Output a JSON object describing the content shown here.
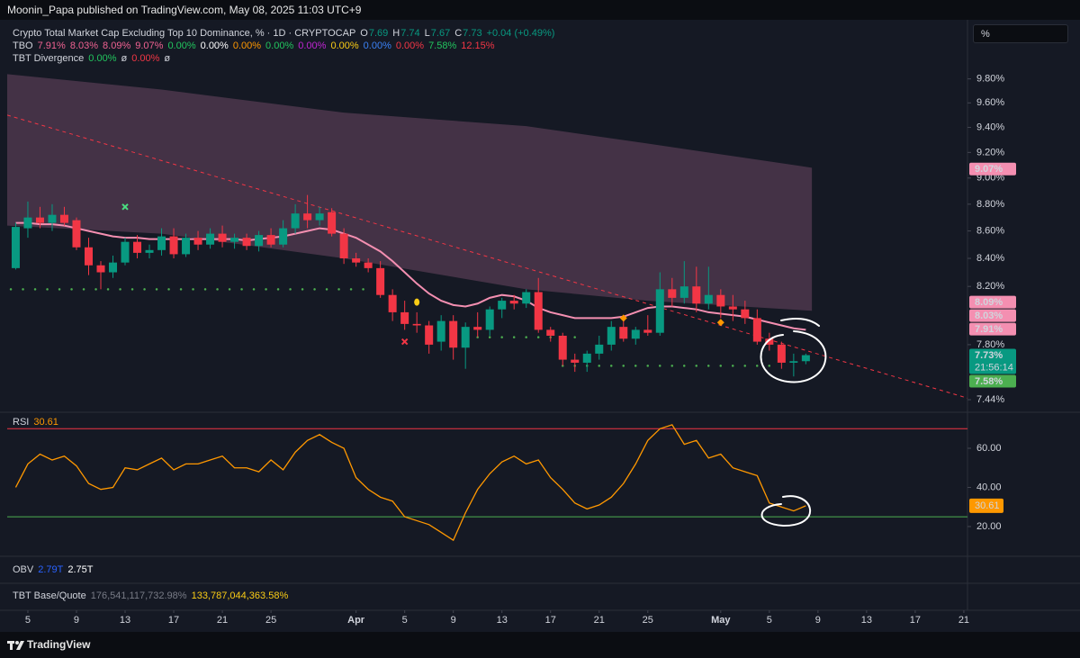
{
  "header": {
    "publisher": "Moonin_Papa published on TradingView.com, May 08, 2025 11:03 UTC+9",
    "scale_button": "%",
    "footer": "TradingView"
  },
  "legend": {
    "symbol": "Crypto Total Market Cap Excluding Top 10 Dominance, % · 1D · CRYPTOCAP",
    "color": "#089981",
    "ohlc": [
      {
        "key": "O",
        "value": "7.69"
      },
      {
        "key": "H",
        "value": "7.74"
      },
      {
        "key": "L",
        "value": "7.67"
      },
      {
        "key": "C",
        "value": "7.73"
      }
    ],
    "change": "+0.04 (+0.49%)"
  },
  "indicators": [
    {
      "name": "TBO",
      "values": [
        {
          "text": "7.91%",
          "color": "#f06292"
        },
        {
          "text": "8.03%",
          "color": "#f06292"
        },
        {
          "text": "8.09%",
          "color": "#f06292"
        },
        {
          "text": "9.07%",
          "color": "#f06292"
        },
        {
          "text": "0.00%",
          "color": "#22c55e"
        },
        {
          "text": "0.00%",
          "color": "#ffffff"
        },
        {
          "text": "0.00%",
          "color": "#ff9800"
        },
        {
          "text": "0.00%",
          "color": "#22c55e"
        },
        {
          "text": "0.00%",
          "color": "#c026d3"
        },
        {
          "text": "0.00%",
          "color": "#facc15"
        },
        {
          "text": "0.00%",
          "color": "#3b82f6"
        },
        {
          "text": "0.00%",
          "color": "#f23645"
        },
        {
          "text": "7.58%",
          "color": "#22c55e"
        },
        {
          "text": "12.15%",
          "color": "#f23645"
        }
      ]
    },
    {
      "name": "TBT Divergence",
      "values": [
        {
          "text": "0.00%",
          "color": "#22c55e"
        },
        {
          "text": "ø",
          "color": "#d1d4dc"
        },
        {
          "text": "0.00%",
          "color": "#f23645"
        },
        {
          "text": "ø",
          "color": "#d1d4dc"
        }
      ]
    }
  ],
  "lower_panes": [
    {
      "name": "OBV",
      "values": [
        {
          "text": "2.79T",
          "color": "#2962ff"
        },
        {
          "text": "2.75T",
          "color": "#ffffff"
        }
      ]
    },
    {
      "name": "TBT Base/Quote",
      "values": [
        {
          "text": "176,541,117,732.98%",
          "color": "#787b86"
        },
        {
          "text": "133,787,044,363.58%",
          "color": "#facc15"
        }
      ]
    }
  ],
  "chart_data": [
    {
      "type": "candlestick",
      "log_scale": true,
      "up_color": "#089981",
      "down_color": "#f23645",
      "x": [
        63,
        64,
        65,
        66,
        67,
        68,
        69,
        70,
        71,
        72,
        73,
        74,
        75,
        76,
        77,
        78,
        79,
        80,
        81,
        82,
        83,
        84,
        85,
        86,
        87,
        88,
        89,
        90,
        91,
        92,
        93,
        94,
        95,
        96,
        97,
        98,
        99,
        100,
        101,
        102,
        103,
        104,
        105,
        106,
        107,
        108,
        109,
        110,
        111,
        112,
        113,
        114,
        115,
        116,
        117,
        118,
        119,
        120,
        121,
        122,
        123,
        124,
        125,
        126,
        127,
        128
      ],
      "open": [
        8.33,
        8.62,
        8.7,
        8.66,
        8.72,
        8.68,
        8.48,
        8.35,
        8.3,
        8.37,
        8.52,
        8.44,
        8.46,
        8.56,
        8.43,
        8.55,
        8.5,
        8.58,
        8.52,
        8.55,
        8.49,
        8.57,
        8.5,
        8.62,
        8.73,
        8.68,
        8.74,
        8.58,
        8.4,
        8.37,
        8.33,
        8.14,
        8.02,
        7.94,
        7.93,
        7.82,
        7.96,
        7.78,
        7.92,
        7.9,
        8.04,
        8.1,
        8.08,
        8.16,
        7.9,
        7.86,
        7.7,
        7.68,
        7.74,
        7.8,
        7.92,
        7.84,
        7.9,
        7.88,
        8.18,
        8.12,
        8.2,
        8.08,
        8.14,
        8.06,
        8.04,
        7.98,
        7.84,
        7.8,
        7.68,
        7.69
      ],
      "high": [
        8.66,
        8.82,
        8.78,
        8.8,
        8.78,
        8.7,
        8.55,
        8.38,
        8.42,
        8.55,
        8.57,
        8.5,
        8.62,
        8.62,
        8.58,
        8.6,
        8.62,
        8.64,
        8.58,
        8.58,
        8.6,
        8.62,
        8.68,
        8.8,
        8.87,
        8.78,
        8.77,
        8.62,
        8.44,
        8.4,
        8.38,
        8.18,
        8.1,
        8.02,
        7.96,
        8.0,
        8.0,
        7.95,
        8.02,
        8.06,
        8.12,
        8.14,
        8.18,
        8.26,
        7.92,
        7.88,
        7.74,
        7.76,
        7.86,
        7.96,
        7.98,
        7.92,
        8.0,
        8.3,
        8.26,
        8.38,
        8.34,
        8.34,
        8.18,
        8.14,
        8.1,
        8.04,
        7.88,
        7.82,
        7.74,
        7.74
      ],
      "low": [
        8.32,
        8.55,
        8.62,
        8.6,
        8.64,
        8.46,
        8.28,
        8.18,
        8.26,
        8.35,
        8.4,
        8.4,
        8.42,
        8.4,
        8.41,
        8.46,
        8.47,
        8.48,
        8.47,
        8.46,
        8.45,
        8.48,
        8.48,
        8.58,
        8.62,
        8.64,
        8.56,
        8.36,
        8.34,
        8.3,
        8.12,
        7.96,
        7.9,
        7.88,
        7.74,
        7.76,
        7.7,
        7.64,
        7.85,
        7.86,
        7.98,
        8.04,
        8.05,
        7.88,
        7.82,
        7.66,
        7.62,
        7.62,
        7.7,
        7.76,
        7.82,
        7.8,
        7.86,
        7.86,
        8.06,
        8.08,
        8.02,
        8.04,
        7.98,
        7.96,
        7.94,
        7.8,
        7.76,
        7.64,
        7.59,
        7.67
      ],
      "close": [
        8.63,
        8.7,
        8.66,
        8.72,
        8.66,
        8.48,
        8.35,
        8.3,
        8.37,
        8.52,
        8.44,
        8.46,
        8.56,
        8.43,
        8.55,
        8.5,
        8.58,
        8.52,
        8.55,
        8.49,
        8.57,
        8.5,
        8.62,
        8.73,
        8.68,
        8.73,
        8.58,
        8.4,
        8.37,
        8.33,
        8.14,
        8.02,
        7.94,
        7.93,
        7.8,
        7.96,
        7.78,
        7.92,
        7.9,
        8.04,
        8.1,
        8.08,
        8.16,
        7.9,
        7.86,
        7.7,
        7.68,
        7.74,
        7.8,
        7.92,
        7.84,
        7.9,
        7.88,
        8.18,
        8.12,
        8.2,
        8.08,
        8.14,
        8.06,
        8.04,
        7.98,
        7.82,
        7.8,
        7.68,
        7.69,
        7.73
      ],
      "ma": {
        "color": "#f48fb1",
        "values": [
          8.66,
          8.66,
          8.65,
          8.65,
          8.64,
          8.62,
          8.6,
          8.58,
          8.56,
          8.55,
          8.55,
          8.54,
          8.54,
          8.54,
          8.54,
          8.54,
          8.54,
          8.54,
          8.54,
          8.53,
          8.54,
          8.55,
          8.56,
          8.58,
          8.6,
          8.62,
          8.61,
          8.58,
          8.55,
          8.5,
          8.45,
          8.38,
          8.3,
          8.22,
          8.15,
          8.1,
          8.07,
          8.06,
          8.08,
          8.12,
          8.14,
          8.13,
          8.1,
          8.05,
          8.02,
          8.0,
          7.98,
          7.98,
          7.98,
          7.98,
          7.99,
          8.02,
          8.05,
          8.06,
          8.06,
          8.05,
          8.04,
          8.02,
          8.01,
          8.0,
          7.99,
          7.97,
          7.95,
          7.93,
          7.91,
          7.9
        ]
      },
      "band": {
        "color": "#6b4763",
        "x": [
          62.3,
          75,
          90,
          105,
          115,
          128.5
        ],
        "upper": [
          9.84,
          9.71,
          9.52,
          9.41,
          9.27,
          9.08
        ],
        "lower": [
          8.64,
          8.58,
          8.4,
          8.18,
          8.1,
          8.03
        ]
      },
      "trendline": {
        "color": "#f23645",
        "x": [
          62.3,
          141.3
        ],
        "values": [
          9.5,
          7.45
        ]
      },
      "levels": {
        "color": "#4caf50",
        "items": [
          {
            "x": [
              62.6,
              92
            ],
            "value": 8.18
          },
          {
            "x": [
              99,
              109
            ],
            "value": 7.85
          },
          {
            "x": [
              108,
              125.5
            ],
            "value": 7.66
          }
        ]
      },
      "signals": [
        {
          "x": 72,
          "value": 8.78,
          "shape": "x",
          "color": "#4ade80"
        },
        {
          "x": 95,
          "value": 7.82,
          "shape": "x",
          "color": "#f23645"
        },
        {
          "x": 96,
          "value": 8.09,
          "shape": "dot",
          "color": "#facc15"
        },
        {
          "x": 113,
          "value": 7.98,
          "shape": "diamond",
          "color": "#ff9800"
        },
        {
          "x": 121,
          "value": 7.95,
          "shape": "diamond",
          "color": "#ff9800"
        }
      ],
      "price_labels": [
        {
          "value": 9.07,
          "label": "9.07%",
          "color": "#f48fb1"
        },
        {
          "value": 8.09,
          "label": "8.09%",
          "color": "#f48fb1"
        },
        {
          "value": 8.03,
          "label": "8.03%",
          "color": "#f48fb1"
        },
        {
          "value": 7.91,
          "label": "7.91%",
          "color": "#f48fb1"
        },
        {
          "value": 7.73,
          "label": "7.73%",
          "color": "#089981",
          "countdown": "21:56:14"
        },
        {
          "value": 7.58,
          "label": "7.58%",
          "color": "#4caf50"
        }
      ],
      "xlim": [
        62.3,
        141.3
      ],
      "ylim": [
        7.36,
        10.31
      ],
      "yticks": [
        {
          "value": 7.44,
          "label": "7.44%"
        },
        {
          "value": 7.8,
          "label": "7.80%"
        },
        {
          "value": 8.2,
          "label": "8.20%"
        },
        {
          "value": 8.4,
          "label": "8.40%"
        },
        {
          "value": 8.6,
          "label": "8.60%"
        },
        {
          "value": 8.8,
          "label": "8.80%"
        },
        {
          "value": 9.0,
          "label": "9.00%"
        },
        {
          "value": 9.2,
          "label": "9.20%"
        },
        {
          "value": 9.4,
          "label": "9.40%"
        },
        {
          "value": 9.6,
          "label": "9.60%"
        },
        {
          "value": 9.8,
          "label": "9.80%"
        }
      ],
      "xticks": [
        {
          "value": 64,
          "label": "5"
        },
        {
          "value": 68,
          "label": "9"
        },
        {
          "value": 72,
          "label": "13"
        },
        {
          "value": 76,
          "label": "17"
        },
        {
          "value": 80,
          "label": "21"
        },
        {
          "value": 84,
          "label": "25"
        },
        {
          "value": 91,
          "label": "Apr"
        },
        {
          "value": 95,
          "label": "5"
        },
        {
          "value": 99,
          "label": "9"
        },
        {
          "value": 103,
          "label": "13"
        },
        {
          "value": 107,
          "label": "17"
        },
        {
          "value": 111,
          "label": "21"
        },
        {
          "value": 115,
          "label": "25"
        },
        {
          "value": 121,
          "label": "May"
        },
        {
          "value": 125,
          "label": "5"
        },
        {
          "value": 129,
          "label": "9"
        },
        {
          "value": 133,
          "label": "13"
        },
        {
          "value": 137,
          "label": "17"
        },
        {
          "value": 141,
          "label": "21"
        }
      ]
    },
    {
      "type": "line",
      "title": "RSI",
      "color": "#ff9800",
      "x": [
        63,
        64,
        65,
        66,
        67,
        68,
        69,
        70,
        71,
        72,
        73,
        74,
        75,
        76,
        77,
        78,
        79,
        80,
        81,
        82,
        83,
        84,
        85,
        86,
        87,
        88,
        89,
        90,
        91,
        92,
        93,
        94,
        95,
        96,
        97,
        98,
        99,
        100,
        101,
        102,
        103,
        104,
        105,
        106,
        107,
        108,
        109,
        110,
        111,
        112,
        113,
        114,
        115,
        116,
        117,
        118,
        119,
        120,
        121,
        122,
        123,
        124,
        125,
        126,
        127,
        128
      ],
      "values": [
        40,
        52,
        57,
        54,
        56,
        51,
        42,
        39,
        40,
        50,
        49,
        52,
        55,
        49,
        52,
        52,
        54,
        56,
        50,
        50,
        48,
        54,
        49,
        58,
        64,
        67,
        63,
        60,
        45,
        39,
        35,
        33,
        25,
        23,
        21,
        17,
        13,
        27,
        39,
        47,
        53,
        56,
        52,
        54,
        45,
        39,
        32,
        29,
        31,
        35,
        42,
        52,
        64,
        70,
        72,
        62,
        64,
        55,
        57,
        50,
        48,
        46,
        32,
        30,
        28,
        30.61
      ],
      "levels": [
        {
          "value": 70,
          "color": "#f23645"
        },
        {
          "value": 25,
          "color": "#4caf50"
        }
      ],
      "xlim": [
        62.3,
        141.3
      ],
      "ylim": [
        4.8,
        78.4
      ],
      "yticks": [
        {
          "value": 20,
          "label": "20.00"
        },
        {
          "value": 40,
          "label": "40.00"
        },
        {
          "value": 60,
          "label": "60.00"
        }
      ]
    }
  ]
}
